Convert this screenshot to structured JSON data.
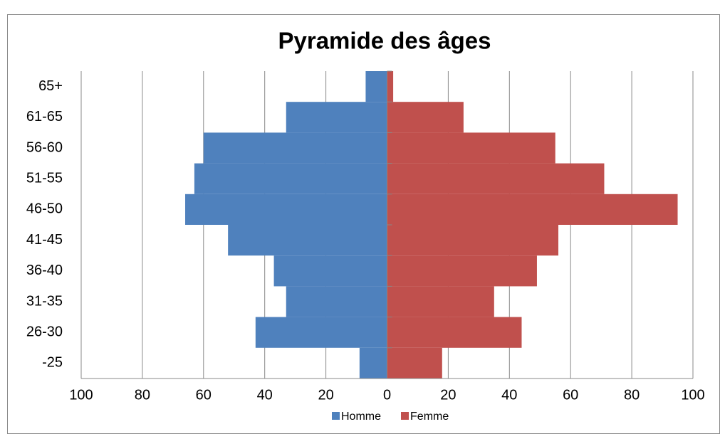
{
  "chart_data": {
    "type": "pyramid",
    "title": "Pyramide des âges",
    "categories": [
      "-25",
      "26-30",
      "31-35",
      "36-40",
      "41-45",
      "46-50",
      "51-55",
      "56-60",
      "61-65",
      "65+"
    ],
    "series": [
      {
        "name": "Homme",
        "color": "#4f81bd",
        "values": [
          -9,
          -43,
          -33,
          -37,
          -52,
          -66,
          -63,
          -60,
          -33,
          -7
        ]
      },
      {
        "name": "Femme",
        "color": "#c0504d",
        "values": [
          18,
          44,
          35,
          49,
          56,
          95,
          71,
          55,
          25,
          2
        ]
      }
    ],
    "xlim": [
      -100,
      100
    ],
    "xticks": [
      {
        "value": -100,
        "label": "100"
      },
      {
        "value": -80,
        "label": "80"
      },
      {
        "value": -60,
        "label": "60"
      },
      {
        "value": -40,
        "label": "40"
      },
      {
        "value": -20,
        "label": "20"
      },
      0,
      20,
      40,
      60,
      80,
      100
    ],
    "grid": true,
    "legend": "bottom"
  }
}
